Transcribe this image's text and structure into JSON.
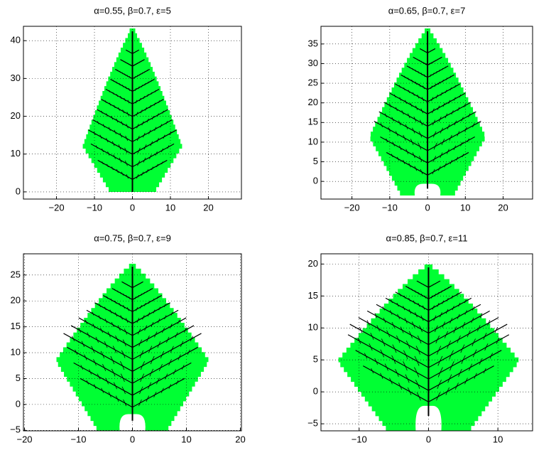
{
  "chart_data": [
    {
      "type": "leaf",
      "title": "α=0.55,   β=0.7, ε=5",
      "grid": true,
      "xlim": [
        -28.7,
        28.7
      ],
      "ylim": [
        -1.9,
        43.8
      ],
      "xticks": [
        {
          "value": -20,
          "label": "−20"
        },
        {
          "value": -10,
          "label": "−10"
        },
        0,
        10,
        20
      ],
      "yticks": [
        0,
        10,
        20,
        30,
        40
      ]
    },
    {
      "type": "leaf",
      "title": "α=0.65,   β=0.7, ε=7",
      "grid": true,
      "xlim": [
        -28.2,
        27.8
      ],
      "ylim": [
        -4.5,
        39.5
      ],
      "xticks": [
        {
          "value": -20,
          "label": "−20"
        },
        {
          "value": -10,
          "label": "−10"
        },
        0,
        10,
        20
      ],
      "yticks": [
        0,
        5,
        10,
        15,
        20,
        25,
        30,
        35
      ]
    },
    {
      "type": "leaf",
      "title": "α=0.75,   β=0.7, ε=9",
      "grid": true,
      "xlim": [
        -20.2,
        20.2
      ],
      "ylim": [
        -5.1,
        29.1
      ],
      "xticks": [
        {
          "value": -20,
          "label": "−20"
        },
        {
          "value": -10,
          "label": "−10"
        },
        0,
        10,
        20
      ],
      "yticks": [
        {
          "value": -5,
          "label": "−5"
        },
        0,
        5,
        10,
        15,
        20,
        25
      ]
    },
    {
      "type": "leaf",
      "title": "α=0.85,   β=0.7, ε=11",
      "grid": true,
      "xlim": [
        -15.5,
        15.0
      ],
      "ylim": [
        -6.1,
        21.6
      ],
      "xticks": [
        {
          "value": -10,
          "label": "−10"
        },
        0,
        10
      ],
      "yticks": [
        {
          "value": -5,
          "label": "−5"
        },
        0,
        5,
        10,
        15,
        20
      ]
    }
  ]
}
